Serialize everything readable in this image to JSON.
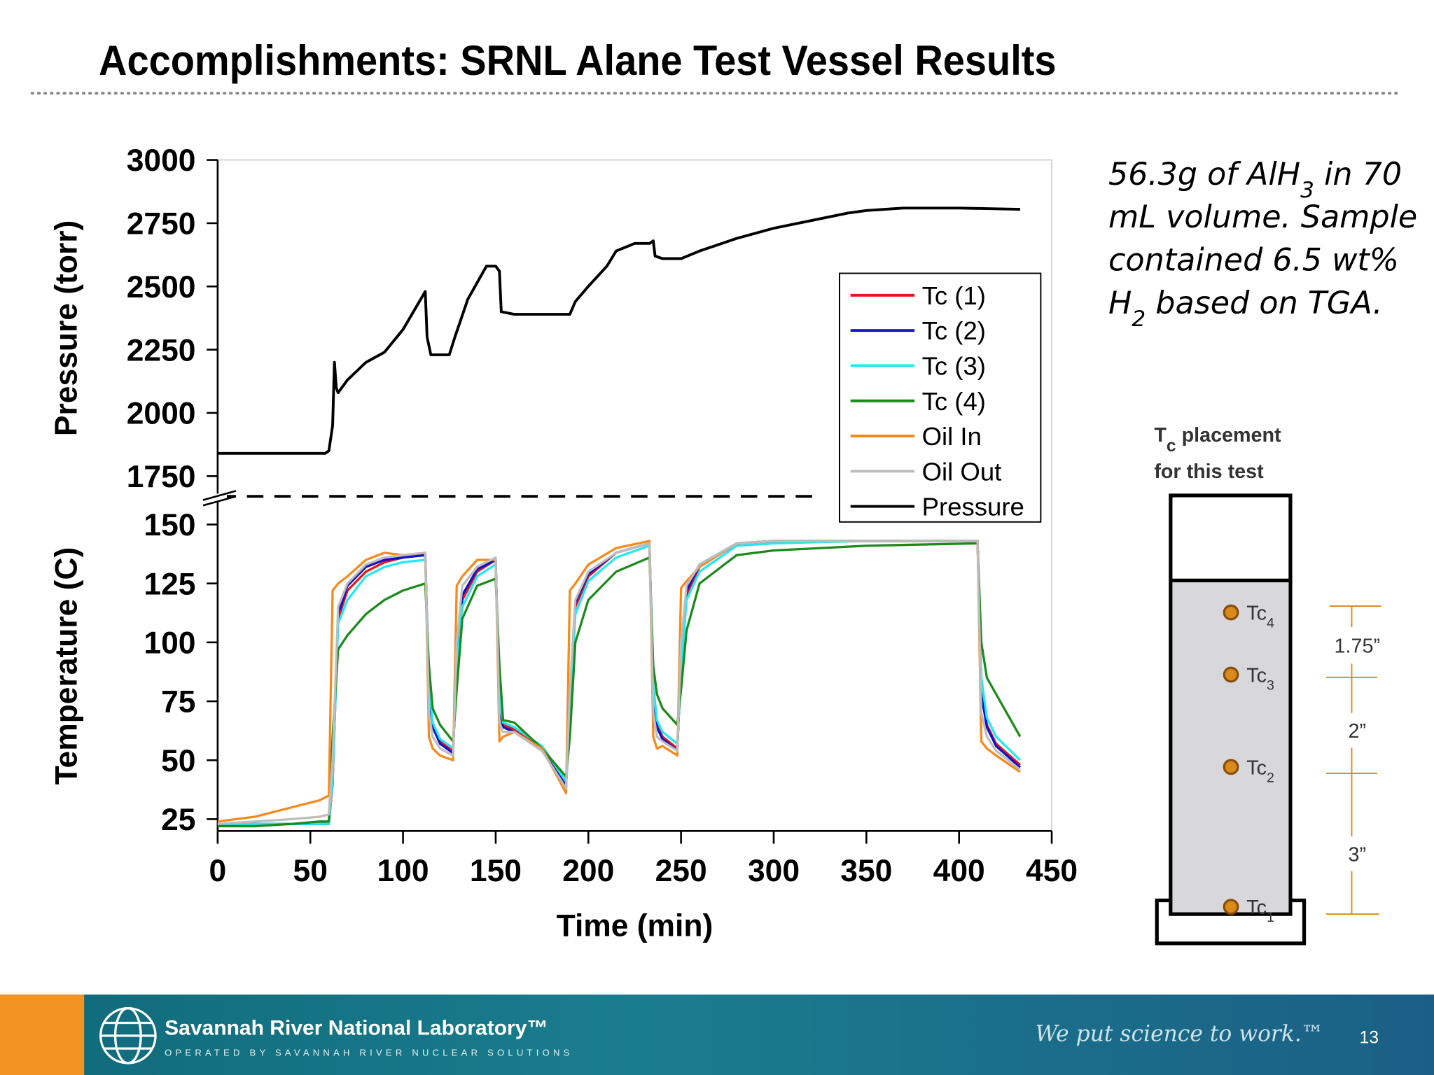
{
  "slide": {
    "title": "Accomplishments: SRNL Alane Test Vessel Results",
    "note": [
      [
        {
          "text": "56.3g of AlH"
        },
        {
          "text": "3",
          "subscript": true
        },
        {
          "text": " in 70"
        }
      ],
      [
        {
          "text": "mL volume.  Sample"
        }
      ],
      [
        {
          "text": "contained 6.5 wt%"
        }
      ],
      [
        {
          "text": "H"
        },
        {
          "text": "2",
          "subscript": true
        },
        {
          "text": " based on TGA."
        }
      ]
    ]
  },
  "diagram": {
    "title": [
      [
        {
          "text": "T"
        },
        {
          "text": "c",
          "subscript": true
        },
        {
          "text": " placement"
        }
      ],
      [
        {
          "text": "for this test"
        }
      ]
    ],
    "sensors": [
      {
        "label": "Tc",
        "sub": "4"
      },
      {
        "label": "Tc",
        "sub": "3"
      },
      {
        "label": "Tc",
        "sub": "2"
      },
      {
        "label": "Tc",
        "sub": "1"
      }
    ],
    "dimensions": [
      "1.75”",
      "2”",
      "3”"
    ]
  },
  "footer": {
    "organization": "Savannah River National Laboratory™",
    "operator": "OPERATED BY SAVANNAH RIVER NUCLEAR SOLUTIONS",
    "slogan": "We put science to work.™",
    "page": "13"
  },
  "chart_data": [
    {
      "type": "line",
      "ylabel": "Pressure (torr)",
      "xlim": [
        0,
        450
      ],
      "ylim": [
        1670,
        3000
      ],
      "yticks": [
        1750,
        2000,
        2250,
        2500,
        2750,
        3000
      ],
      "legend": "upper right",
      "x": [
        0,
        20,
        40,
        58,
        60,
        62,
        63,
        64,
        65,
        70,
        80,
        90,
        100,
        112,
        113,
        115,
        125,
        128,
        135,
        145,
        150,
        152,
        153,
        160,
        190,
        193,
        200,
        210,
        215,
        225,
        233,
        235,
        236,
        240,
        250,
        260,
        280,
        300,
        320,
        340,
        350,
        370,
        400,
        433
      ],
      "series": [
        {
          "name": "Pressure",
          "color": "#000000",
          "values": [
            1840,
            1840,
            1840,
            1840,
            1850,
            1950,
            2200,
            2100,
            2080,
            2130,
            2200,
            2240,
            2330,
            2480,
            2300,
            2230,
            2230,
            2300,
            2450,
            2580,
            2580,
            2560,
            2400,
            2390,
            2390,
            2440,
            2500,
            2580,
            2640,
            2670,
            2670,
            2680,
            2620,
            2610,
            2610,
            2640,
            2690,
            2730,
            2760,
            2790,
            2800,
            2810,
            2810,
            2805
          ]
        }
      ]
    },
    {
      "type": "line",
      "ylabel": "Temperature (C)",
      "xlabel": "Time (min)",
      "xlim": [
        0,
        450
      ],
      "ylim": [
        20,
        160
      ],
      "xticks": [
        0,
        50,
        100,
        150,
        200,
        250,
        300,
        350,
        400,
        450
      ],
      "yticks": [
        25,
        50,
        75,
        100,
        125,
        150
      ],
      "x": [
        0,
        20,
        40,
        55,
        60,
        62,
        65,
        70,
        80,
        90,
        100,
        112,
        114,
        116,
        120,
        127,
        129,
        132,
        140,
        150,
        152,
        154,
        160,
        175,
        188,
        190,
        193,
        200,
        215,
        233,
        235,
        237,
        240,
        248,
        250,
        253,
        260,
        280,
        300,
        350,
        410,
        412,
        415,
        420,
        433
      ],
      "series": [
        {
          "name": "Tc (1)",
          "color": "#e8141c",
          "values": [
            23,
            23,
            23,
            23,
            23,
            40,
            110,
            122,
            130,
            134,
            136,
            138,
            80,
            65,
            58,
            54,
            90,
            118,
            130,
            135,
            75,
            65,
            63,
            55,
            40,
            70,
            115,
            128,
            138,
            142,
            80,
            65,
            60,
            55,
            90,
            120,
            132,
            142,
            143,
            143,
            143,
            80,
            65,
            57,
            48
          ]
        },
        {
          "name": "Tc (2)",
          "color": "#1010c8",
          "values": [
            23,
            23,
            23,
            23,
            23,
            45,
            112,
            124,
            132,
            135,
            136,
            137,
            78,
            64,
            57,
            53,
            92,
            120,
            131,
            135,
            72,
            64,
            62,
            54,
            39,
            72,
            117,
            129,
            138,
            142,
            78,
            64,
            59,
            54,
            92,
            122,
            133,
            142,
            143,
            143,
            143,
            78,
            64,
            56,
            47
          ]
        },
        {
          "name": "Tc (3)",
          "color": "#22e8f0",
          "values": [
            23,
            23,
            23,
            23,
            23,
            42,
            108,
            118,
            128,
            132,
            134,
            135,
            82,
            66,
            59,
            55,
            88,
            115,
            128,
            133,
            76,
            66,
            64,
            56,
            41,
            68,
            112,
            126,
            136,
            141,
            82,
            67,
            62,
            57,
            88,
            118,
            130,
            141,
            142,
            143,
            143,
            85,
            68,
            60,
            50
          ]
        },
        {
          "name": "Tc (4)",
          "color": "#1a8a1a",
          "values": [
            22,
            22,
            23,
            24,
            24,
            60,
            97,
            103,
            112,
            118,
            122,
            125,
            90,
            72,
            65,
            58,
            80,
            110,
            124,
            127,
            90,
            67,
            66,
            55,
            43,
            60,
            100,
            118,
            130,
            136,
            90,
            78,
            72,
            65,
            80,
            105,
            125,
            137,
            139,
            141,
            142,
            100,
            85,
            78,
            60
          ]
        },
        {
          "name": "Oil In",
          "color": "#f5891e",
          "values": [
            24,
            26,
            30,
            33,
            35,
            122,
            125,
            128,
            135,
            138,
            137,
            138,
            60,
            55,
            52,
            50,
            124,
            128,
            135,
            135,
            58,
            60,
            62,
            55,
            36,
            122,
            125,
            133,
            140,
            143,
            60,
            55,
            56,
            52,
            123,
            126,
            132,
            142,
            143,
            143,
            143,
            58,
            55,
            52,
            45
          ]
        },
        {
          "name": "Oil Out",
          "color": "#bdbdbd",
          "values": [
            23,
            24,
            25,
            26,
            27,
            50,
            115,
            125,
            133,
            136,
            137,
            138,
            70,
            60,
            55,
            52,
            100,
            124,
            132,
            136,
            66,
            62,
            62,
            54,
            38,
            80,
            118,
            130,
            138,
            142,
            70,
            60,
            58,
            54,
            100,
            124,
            133,
            142,
            143,
            143,
            143,
            70,
            60,
            54,
            46
          ]
        }
      ]
    }
  ]
}
